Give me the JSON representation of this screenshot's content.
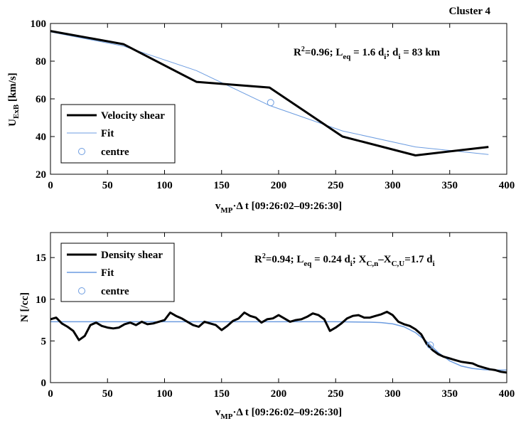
{
  "header": {
    "cluster_label": "Cluster 4"
  },
  "chart_data": [
    {
      "type": "line",
      "ylabel": "U",
      "ylabel_sub": "ExB",
      "ylabel_unit": " [km/s]",
      "xlabel_main": "v",
      "xlabel_sub": "MP",
      "xlabel_rest": "·Δ t [09:26:02–09:26:30]",
      "xlim": [
        0,
        400
      ],
      "ylim": [
        20,
        100
      ],
      "xticks": [
        0,
        50,
        100,
        150,
        200,
        250,
        300,
        350,
        400
      ],
      "yticks": [
        20,
        40,
        60,
        80,
        100
      ],
      "annotation": {
        "r": "R",
        "r_sup": "2",
        "r_val": "=0.96; L",
        "leq_sub": "eq",
        "mid": " = 1.6 d",
        "di_sub": "i",
        "tail": "; d",
        "di2_sub": "i",
        "end": " = 83 km"
      },
      "legend": {
        "position": "bottom-left",
        "entries": [
          "Velocity shear",
          "Fit",
          "centre"
        ]
      },
      "series": [
        {
          "name": "Velocity shear",
          "color": "#000000",
          "x": [
            0,
            64,
            128,
            192,
            256,
            320,
            384
          ],
          "y": [
            96,
            89,
            69,
            66,
            40,
            30,
            34.5
          ]
        },
        {
          "name": "Fit",
          "color": "#6c9ce0",
          "x": [
            0,
            64,
            128,
            192,
            256,
            320,
            384
          ],
          "y": [
            95.5,
            88,
            75,
            56.5,
            43,
            34.5,
            30.5
          ]
        }
      ],
      "centre": {
        "name": "centre",
        "x": 193,
        "y": 58
      }
    },
    {
      "type": "line",
      "ylabel": "N [/cc]",
      "xlabel_main": "v",
      "xlabel_sub": "MP",
      "xlabel_rest": "·Δ t [09:26:02–09:26:30]",
      "xlim": [
        0,
        400
      ],
      "ylim": [
        0,
        18
      ],
      "xticks": [
        0,
        50,
        100,
        150,
        200,
        250,
        300,
        350,
        400
      ],
      "yticks": [
        0,
        5,
        10,
        15
      ],
      "annotation": {
        "r": "R",
        "r_sup": "2",
        "r_val": "=0.94; L",
        "leq_sub": "eq",
        "mid": " = 0.24 d",
        "di_sub": "i",
        "tail": "; X",
        "xcn_sub": "C,n",
        "dash": "–X",
        "xcu_sub": "C,U",
        "val": "=1.7 d",
        "di2_sub": "i"
      },
      "legend": {
        "position": "top-left",
        "entries": [
          "Density shear",
          "Fit",
          "centre"
        ]
      },
      "series": [
        {
          "name": "Density shear",
          "color": "#000000",
          "x": [
            0,
            5,
            10,
            15,
            20,
            25,
            30,
            35,
            40,
            45,
            50,
            55,
            60,
            65,
            70,
            75,
            80,
            85,
            90,
            95,
            100,
            105,
            110,
            115,
            120,
            125,
            130,
            135,
            140,
            145,
            150,
            155,
            160,
            165,
            170,
            175,
            180,
            185,
            190,
            195,
            200,
            205,
            210,
            215,
            220,
            225,
            230,
            235,
            240,
            245,
            250,
            255,
            260,
            265,
            270,
            275,
            280,
            285,
            290,
            295,
            300,
            305,
            310,
            315,
            320,
            325,
            330,
            335,
            340,
            345,
            350,
            355,
            360,
            365,
            370,
            375,
            380,
            385,
            390,
            395,
            400
          ],
          "y": [
            7.6,
            7.8,
            7.1,
            6.7,
            6.2,
            5.1,
            5.6,
            6.9,
            7.2,
            6.8,
            6.6,
            6.5,
            6.6,
            7.0,
            7.2,
            6.9,
            7.3,
            7.0,
            7.1,
            7.3,
            7.5,
            8.4,
            8.0,
            7.7,
            7.3,
            6.9,
            6.7,
            7.3,
            7.1,
            6.9,
            6.3,
            6.8,
            7.4,
            7.7,
            8.4,
            8.0,
            7.8,
            7.2,
            7.6,
            7.7,
            8.1,
            7.7,
            7.3,
            7.5,
            7.6,
            7.9,
            8.3,
            8.1,
            7.6,
            6.2,
            6.6,
            7.1,
            7.7,
            8.0,
            8.1,
            7.8,
            7.8,
            8.0,
            8.2,
            8.5,
            8.1,
            7.3,
            7.0,
            6.8,
            6.4,
            5.8,
            4.6,
            3.9,
            3.4,
            3.1,
            2.9,
            2.7,
            2.5,
            2.4,
            2.3,
            2.0,
            1.8,
            1.6,
            1.5,
            1.3,
            1.2
          ]
        },
        {
          "name": "Fit",
          "color": "#6c9ce0",
          "x": [
            0,
            50,
            100,
            150,
            200,
            250,
            280,
            290,
            300,
            310,
            320,
            330,
            340,
            350,
            360,
            370,
            380,
            390,
            400
          ],
          "y": [
            7.3,
            7.3,
            7.3,
            7.3,
            7.3,
            7.3,
            7.25,
            7.2,
            7.05,
            6.7,
            6.0,
            4.9,
            3.6,
            2.6,
            2.0,
            1.7,
            1.55,
            1.5,
            1.5
          ]
        }
      ],
      "centre": {
        "name": "centre",
        "x": 333,
        "y": 4.5
      }
    }
  ]
}
